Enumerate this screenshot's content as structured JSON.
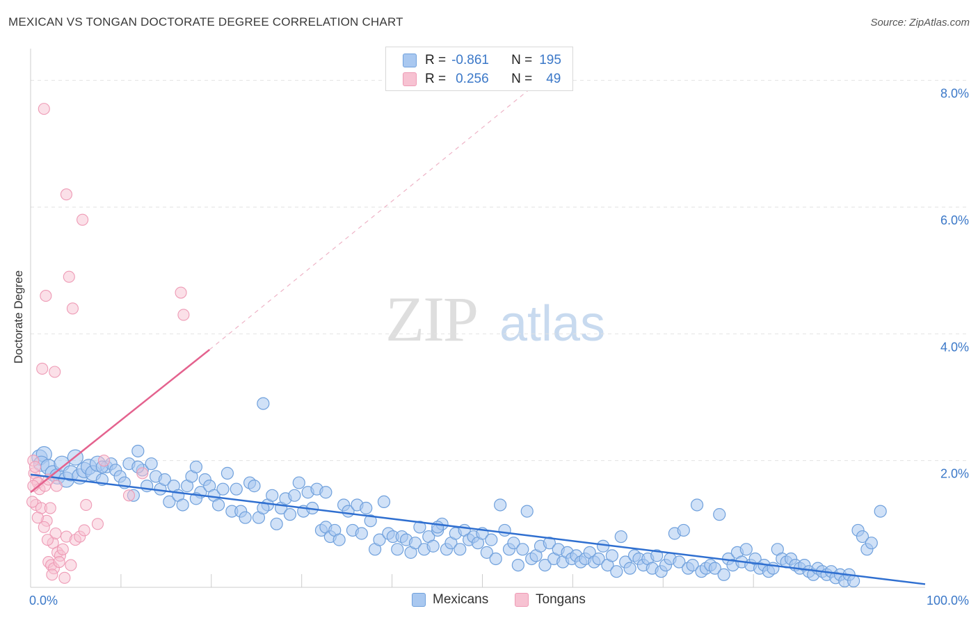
{
  "title": "MEXICAN VS TONGAN DOCTORATE DEGREE CORRELATION CHART",
  "source": "Source: ZipAtlas.com",
  "watermark": {
    "zip": "ZIP",
    "atlas": "atlas"
  },
  "legend": {
    "mexicans": {
      "r_label": "R =",
      "r_value": "-0.861",
      "n_label": "N =",
      "n_value": "195"
    },
    "tongans": {
      "r_label": "R =",
      "r_value": "0.256",
      "n_label": "N =",
      "n_value": "49"
    }
  },
  "colors": {
    "mexicans_fill": "#a9c8f0",
    "mexicans_stroke": "#6fa0dc",
    "mexicans_line": "#2f6fd0",
    "tongans_fill": "#f7c2d2",
    "tongans_stroke": "#ee9ab5",
    "tongans_line": "#e4628e",
    "axis_text": "#3b78c8",
    "grid": "#e2e2e2"
  },
  "chart_data": {
    "type": "scatter",
    "title": "MEXICAN VS TONGAN DOCTORATE DEGREE CORRELATION CHART",
    "xlabel": "",
    "ylabel": "Doctorate Degree",
    "xlim": [
      0,
      100
    ],
    "ylim": [
      0,
      8.5
    ],
    "x_tick_labels": [
      "0.0%",
      "100.0%"
    ],
    "y_ticks": [
      2,
      4,
      6,
      8
    ],
    "y_tick_labels": [
      "2.0%",
      "4.0%",
      "6.0%",
      "8.0%"
    ],
    "legend_position": "bottom-center",
    "series": [
      {
        "name": "Mexicans",
        "r": -0.861,
        "n": 195,
        "trend": {
          "x": [
            0,
            100
          ],
          "y": [
            1.78,
            0.05
          ]
        },
        "points": [
          [
            1,
            2.05
          ],
          [
            1.5,
            2.1
          ],
          [
            1.2,
            1.95
          ],
          [
            2,
            1.9
          ],
          [
            2.5,
            1.8
          ],
          [
            3,
            1.75
          ],
          [
            3.5,
            1.95
          ],
          [
            4,
            1.7
          ],
          [
            4.5,
            1.8
          ],
          [
            5,
            2.05
          ],
          [
            5.5,
            1.75
          ],
          [
            6,
            1.85
          ],
          [
            6.5,
            1.9
          ],
          [
            7,
            1.8
          ],
          [
            7.5,
            1.95
          ],
          [
            8,
            1.7
          ],
          [
            8.5,
            1.9
          ],
          [
            9,
            1.95
          ],
          [
            9.5,
            1.85
          ],
          [
            10,
            1.75
          ],
          [
            10.5,
            1.65
          ],
          [
            11,
            1.95
          ],
          [
            11.5,
            1.45
          ],
          [
            12,
            2.15
          ],
          [
            12.5,
            1.85
          ],
          [
            13,
            1.6
          ],
          [
            13.5,
            1.95
          ],
          [
            14,
            1.75
          ],
          [
            14.5,
            1.55
          ],
          [
            15,
            1.7
          ],
          [
            15.5,
            1.35
          ],
          [
            16,
            1.6
          ],
          [
            16.5,
            1.45
          ],
          [
            17,
            1.3
          ],
          [
            17.5,
            1.6
          ],
          [
            18,
            1.75
          ],
          [
            18.5,
            1.9
          ],
          [
            19,
            1.5
          ],
          [
            19.5,
            1.7
          ],
          [
            20,
            1.6
          ],
          [
            20.5,
            1.45
          ],
          [
            21,
            1.3
          ],
          [
            21.5,
            1.55
          ],
          [
            22,
            1.8
          ],
          [
            22.5,
            1.2
          ],
          [
            23,
            1.55
          ],
          [
            23.5,
            1.2
          ],
          [
            24,
            1.1
          ],
          [
            24.5,
            1.65
          ],
          [
            25,
            1.6
          ],
          [
            25.5,
            1.1
          ],
          [
            26,
            2.9
          ],
          [
            26.5,
            1.3
          ],
          [
            27,
            1.45
          ],
          [
            27.5,
            1.0
          ],
          [
            28,
            1.25
          ],
          [
            28.5,
            1.4
          ],
          [
            29,
            1.15
          ],
          [
            29.5,
            1.45
          ],
          [
            30,
            1.65
          ],
          [
            30.5,
            1.2
          ],
          [
            31,
            1.5
          ],
          [
            31.5,
            1.25
          ],
          [
            32,
            1.55
          ],
          [
            32.5,
            0.9
          ],
          [
            33,
            0.95
          ],
          [
            33.5,
            0.8
          ],
          [
            34,
            0.9
          ],
          [
            34.5,
            0.75
          ],
          [
            35,
            1.3
          ],
          [
            35.5,
            1.2
          ],
          [
            36,
            0.9
          ],
          [
            36.5,
            1.3
          ],
          [
            37,
            0.85
          ],
          [
            37.5,
            1.25
          ],
          [
            38,
            1.05
          ],
          [
            38.5,
            0.6
          ],
          [
            39,
            0.75
          ],
          [
            39.5,
            1.35
          ],
          [
            40,
            0.85
          ],
          [
            40.5,
            0.8
          ],
          [
            41,
            0.6
          ],
          [
            41.5,
            0.8
          ],
          [
            42,
            0.75
          ],
          [
            42.5,
            0.55
          ],
          [
            43,
            0.7
          ],
          [
            43.5,
            0.95
          ],
          [
            44,
            0.6
          ],
          [
            44.5,
            0.8
          ],
          [
            45,
            0.65
          ],
          [
            45.5,
            0.9
          ],
          [
            46,
            1.0
          ],
          [
            46.5,
            0.6
          ],
          [
            47,
            0.7
          ],
          [
            47.5,
            0.85
          ],
          [
            48,
            0.6
          ],
          [
            48.5,
            0.9
          ],
          [
            49,
            0.75
          ],
          [
            49.5,
            0.8
          ],
          [
            50,
            0.7
          ],
          [
            50.5,
            0.85
          ],
          [
            51,
            0.55
          ],
          [
            51.5,
            0.75
          ],
          [
            52,
            0.45
          ],
          [
            52.5,
            1.3
          ],
          [
            53,
            0.9
          ],
          [
            53.5,
            0.6
          ],
          [
            54,
            0.7
          ],
          [
            54.5,
            0.35
          ],
          [
            55,
            0.6
          ],
          [
            55.5,
            1.2
          ],
          [
            56,
            0.45
          ],
          [
            56.5,
            0.5
          ],
          [
            57,
            0.65
          ],
          [
            57.5,
            0.35
          ],
          [
            58,
            0.7
          ],
          [
            58.5,
            0.45
          ],
          [
            59,
            0.6
          ],
          [
            59.5,
            0.4
          ],
          [
            60,
            0.55
          ],
          [
            60.5,
            0.45
          ],
          [
            61,
            0.5
          ],
          [
            61.5,
            0.4
          ],
          [
            62,
            0.45
          ],
          [
            62.5,
            0.55
          ],
          [
            63,
            0.4
          ],
          [
            63.5,
            0.45
          ],
          [
            64,
            0.65
          ],
          [
            64.5,
            0.35
          ],
          [
            65,
            0.5
          ],
          [
            65.5,
            0.25
          ],
          [
            66,
            0.8
          ],
          [
            66.5,
            0.4
          ],
          [
            67,
            0.3
          ],
          [
            67.5,
            0.5
          ],
          [
            68,
            0.45
          ],
          [
            68.5,
            0.35
          ],
          [
            69,
            0.45
          ],
          [
            69.5,
            0.3
          ],
          [
            70,
            0.5
          ],
          [
            70.5,
            0.25
          ],
          [
            71,
            0.35
          ],
          [
            71.5,
            0.45
          ],
          [
            72,
            0.85
          ],
          [
            72.5,
            0.4
          ],
          [
            73,
            0.9
          ],
          [
            73.5,
            0.3
          ],
          [
            74,
            0.35
          ],
          [
            74.5,
            1.3
          ],
          [
            75,
            0.25
          ],
          [
            75.5,
            0.3
          ],
          [
            76,
            0.35
          ],
          [
            76.5,
            0.3
          ],
          [
            77,
            1.15
          ],
          [
            77.5,
            0.2
          ],
          [
            78,
            0.45
          ],
          [
            78.5,
            0.35
          ],
          [
            79,
            0.55
          ],
          [
            79.5,
            0.4
          ],
          [
            80,
            0.6
          ],
          [
            80.5,
            0.35
          ],
          [
            81,
            0.45
          ],
          [
            81.5,
            0.3
          ],
          [
            82,
            0.35
          ],
          [
            82.5,
            0.25
          ],
          [
            83,
            0.3
          ],
          [
            83.5,
            0.6
          ],
          [
            84,
            0.45
          ],
          [
            84.5,
            0.4
          ],
          [
            85,
            0.45
          ],
          [
            85.5,
            0.35
          ],
          [
            86,
            0.3
          ],
          [
            86.5,
            0.35
          ],
          [
            87,
            0.25
          ],
          [
            87.5,
            0.2
          ],
          [
            88,
            0.3
          ],
          [
            88.5,
            0.25
          ],
          [
            89,
            0.2
          ],
          [
            89.5,
            0.25
          ],
          [
            90,
            0.15
          ],
          [
            90.5,
            0.2
          ],
          [
            91,
            0.1
          ],
          [
            91.5,
            0.2
          ],
          [
            92,
            0.1
          ],
          [
            92.5,
            0.9
          ],
          [
            93,
            0.8
          ],
          [
            93.5,
            0.6
          ],
          [
            94,
            0.7
          ],
          [
            95,
            1.2
          ],
          [
            45.5,
            0.95
          ],
          [
            33,
            1.5
          ],
          [
            26,
            1.25
          ],
          [
            18.5,
            1.4
          ],
          [
            12,
            1.9
          ],
          [
            8,
            1.9
          ]
        ]
      },
      {
        "name": "Tongans",
        "r": 0.256,
        "n": 49,
        "trend": {
          "x": [
            0,
            20
          ],
          "y": [
            1.5,
            3.75
          ]
        },
        "trend_extension": {
          "x": [
            20,
            57
          ],
          "y": [
            3.75,
            8.0
          ]
        },
        "points": [
          [
            1.5,
            7.55
          ],
          [
            4,
            6.2
          ],
          [
            5.8,
            5.8
          ],
          [
            4.3,
            4.9
          ],
          [
            1.7,
            4.6
          ],
          [
            4.7,
            4.4
          ],
          [
            16.8,
            4.65
          ],
          [
            17.1,
            4.3
          ],
          [
            1.3,
            3.45
          ],
          [
            2.7,
            3.4
          ],
          [
            0.3,
            2.0
          ],
          [
            0.4,
            1.8
          ],
          [
            0.5,
            1.9
          ],
          [
            0.6,
            1.7
          ],
          [
            0.8,
            1.65
          ],
          [
            1.0,
            1.55
          ],
          [
            0.3,
            1.6
          ],
          [
            0.6,
            1.3
          ],
          [
            1.2,
            1.25
          ],
          [
            1.6,
            1.6
          ],
          [
            2.0,
            1.7
          ],
          [
            2.2,
            1.25
          ],
          [
            1.8,
            1.05
          ],
          [
            0.8,
            1.1
          ],
          [
            1.5,
            0.95
          ],
          [
            2.5,
            0.7
          ],
          [
            3.0,
            0.55
          ],
          [
            3.3,
            0.5
          ],
          [
            2.8,
            0.85
          ],
          [
            2.0,
            0.4
          ],
          [
            2.3,
            0.35
          ],
          [
            2.6,
            0.3
          ],
          [
            3.2,
            0.4
          ],
          [
            2.4,
            0.2
          ],
          [
            3.8,
            0.15
          ],
          [
            4.0,
            0.8
          ],
          [
            4.5,
            0.35
          ],
          [
            5.0,
            0.75
          ],
          [
            5.5,
            0.8
          ],
          [
            6.0,
            0.9
          ],
          [
            6.2,
            1.3
          ],
          [
            7.5,
            1.0
          ],
          [
            8.2,
            2.0
          ],
          [
            11.0,
            1.45
          ],
          [
            12.5,
            1.8
          ],
          [
            3.6,
            0.6
          ],
          [
            1.9,
            0.75
          ],
          [
            2.9,
            1.6
          ],
          [
            0.2,
            1.35
          ]
        ]
      }
    ]
  }
}
